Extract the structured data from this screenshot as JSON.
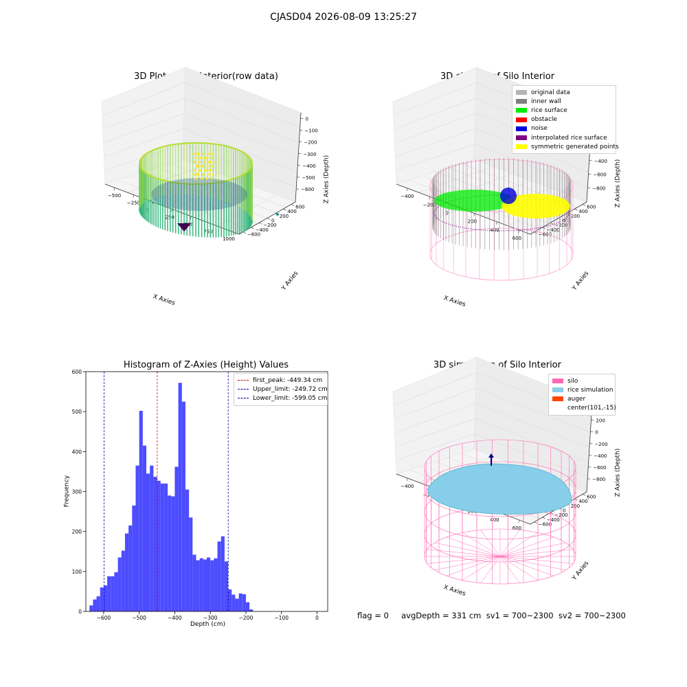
{
  "figure": {
    "title": "CJASD04 2026-08-09 13:25:27",
    "footer": "flag = 0     avgDepth = 331 cm  sv1 = 700~2300  sv2 = 700~2300"
  },
  "chart_data": [
    {
      "type": "scatter3d",
      "title": "3D Plot of Silo Interior(row data)",
      "xlabel": "X Axies",
      "ylabel": "Y Axies",
      "zlabel": "Z Axies (Depth)",
      "xticks": [
        "−500",
        "−250",
        "0",
        "250",
        "500",
        "750",
        "1000"
      ],
      "yticks": [
        "−600",
        "−400",
        "−200",
        "0",
        "200",
        "400",
        "600"
      ],
      "zticks": [
        "0",
        "−100",
        "−200",
        "−300",
        "−400",
        "−500",
        "−600"
      ],
      "colormap": "viridis"
    },
    {
      "type": "scatter3d",
      "title": "3D classify of Silo Interior",
      "xlabel": "X Axies",
      "ylabel": "Y Axies",
      "zlabel": "Z Axies (Depth)",
      "xticks": [
        "−400",
        "−200",
        "0",
        "200",
        "400",
        "600"
      ],
      "yticks": [
        "−600",
        "−400",
        "−200",
        "0",
        "200",
        "400",
        "600"
      ],
      "zticks": [
        "200",
        "0",
        "−200",
        "−400",
        "−600",
        "−800"
      ],
      "legend": [
        {
          "label": "original data",
          "color": "#b4b4b4"
        },
        {
          "label": "inner wall",
          "color": "#808080"
        },
        {
          "label": "rice surface",
          "color": "#00ee00"
        },
        {
          "label": "obstacle",
          "color": "#ff0000"
        },
        {
          "label": "noise",
          "color": "#0000dd"
        },
        {
          "label": "interpolated rice surface",
          "color": "#800080"
        },
        {
          "label": "symmetric generated points",
          "color": "#ffff00"
        }
      ]
    },
    {
      "type": "bar",
      "title": "Histogram of Z-Axies (Height) Values",
      "xlabel": "Depth (cm)",
      "ylabel": "Frequency",
      "xlim": [
        -650,
        30
      ],
      "ylim": [
        0,
        600
      ],
      "xticks": [
        -600,
        -500,
        -400,
        -300,
        -200,
        -100,
        0
      ],
      "yticks": [
        0,
        100,
        200,
        300,
        400,
        500,
        600
      ],
      "bin_start": -640,
      "bin_width": 10,
      "bar_color": "#4d4dff",
      "values": [
        15,
        30,
        38,
        60,
        65,
        88,
        88,
        98,
        135,
        152,
        195,
        215,
        265,
        365,
        502,
        415,
        345,
        365,
        337,
        327,
        320,
        320,
        290,
        288,
        362,
        572,
        525,
        305,
        235,
        142,
        128,
        133,
        130,
        135,
        128,
        133,
        175,
        188,
        125,
        55,
        42,
        32,
        45,
        43,
        23,
        5
      ],
      "vlines": [
        {
          "label": "first_peak: -449.34 cm",
          "x": -449.34,
          "color": "#dd0000"
        },
        {
          "label": "Upper_limit: -249.72 cm",
          "x": -249.72,
          "color": "#0000aa"
        },
        {
          "label": "Lower_limit: -599.05 cm",
          "x": -599.05,
          "color": "#0000aa"
        }
      ]
    },
    {
      "type": "surface3d",
      "title": "3D simulation of Silo Interior",
      "xlabel": "X Axies",
      "ylabel": "Y Axies",
      "zlabel": "Z Axies (Depth)",
      "xticks": [
        "−400",
        "−200",
        "0",
        "200",
        "400",
        "600"
      ],
      "yticks": [
        "−600",
        "−400",
        "−200",
        "0",
        "200",
        "400",
        "600"
      ],
      "zticks": [
        "400",
        "200",
        "0",
        "−200",
        "−400",
        "−600",
        "−800"
      ],
      "legend": [
        {
          "label": "silo",
          "color": "#ff69b4"
        },
        {
          "label": "rice simulation",
          "color": "#87ceeb"
        },
        {
          "label": "auger",
          "color": "#ff4500"
        },
        {
          "label": "center(101,-15)",
          "color": "none"
        }
      ]
    }
  ]
}
